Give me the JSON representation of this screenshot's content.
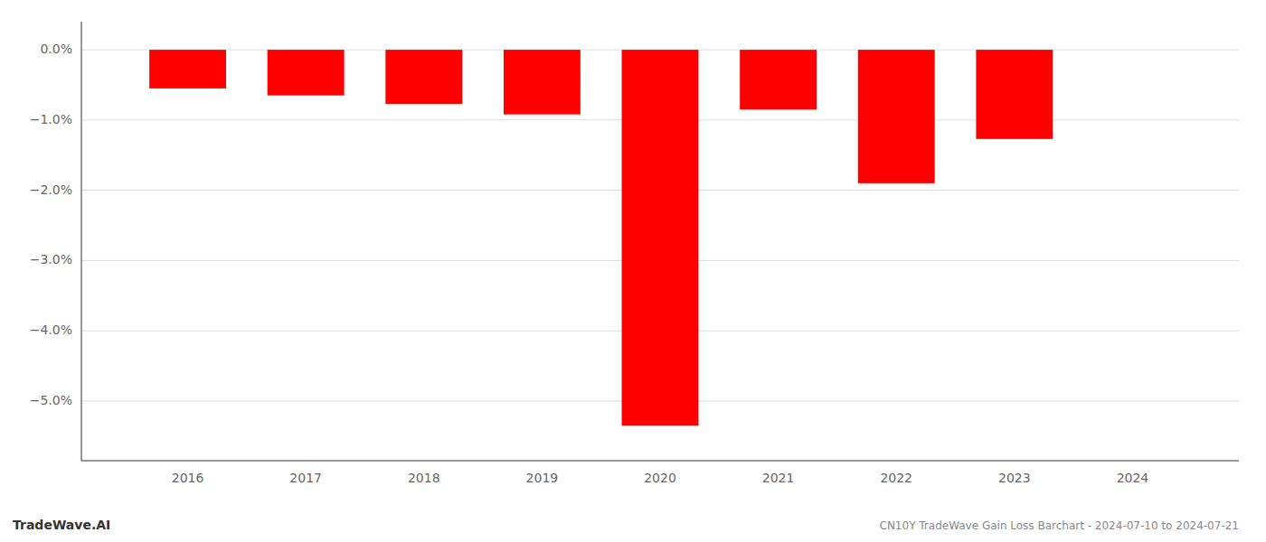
{
  "chart_data": {
    "type": "bar",
    "title": "CN10Y TradeWave Gain Loss Barchart - 2024-07-10 to 2024-07-21",
    "annotations": [
      "TradeWave.AI"
    ],
    "x": [
      2016,
      2017,
      2018,
      2019,
      2020,
      2021,
      2022,
      2023
    ],
    "values": [
      -0.0055,
      -0.0065,
      -0.0077,
      -0.0092,
      -0.0535,
      -0.0085,
      -0.019,
      -0.0127
    ],
    "color": "#ff0000",
    "xlim": [
      2015.1,
      2024.9
    ],
    "xticks": [
      2016,
      2017,
      2018,
      2019,
      2020,
      2021,
      2022,
      2023,
      2024
    ],
    "ylim": [
      -0.0585,
      0.004
    ],
    "yticks": [
      {
        "value": 0.0,
        "label": "0.0%"
      },
      {
        "value": -0.01,
        "label": "−1.0%"
      },
      {
        "value": -0.02,
        "label": "−2.0%"
      },
      {
        "value": -0.03,
        "label": "−3.0%"
      },
      {
        "value": -0.04,
        "label": "−4.0%"
      },
      {
        "value": -0.05,
        "label": "−5.0%"
      }
    ],
    "grid": true
  }
}
